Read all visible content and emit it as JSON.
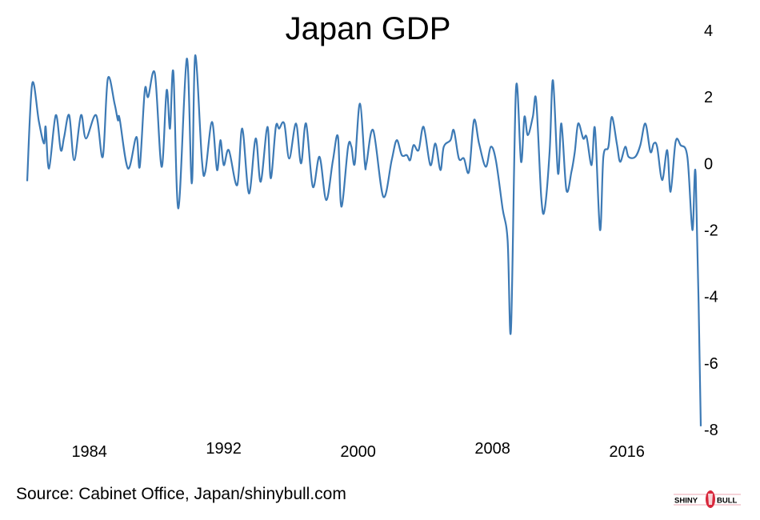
{
  "chart_data": {
    "type": "line",
    "title": "Japan GDP",
    "xlabel": "",
    "ylabel": "",
    "source": "Source: Cabinet Office, Japan/shinybull.com",
    "logo_text": "SHINY BULL",
    "x_ticks": [
      "1984",
      "1992",
      "2000",
      "2008",
      "2016"
    ],
    "y_ticks": [
      "4",
      "2",
      "0",
      "-2",
      "-4",
      "-6",
      "-8"
    ],
    "ylim": [
      -8,
      4
    ],
    "xlim": [
      1980.3,
      2020.4
    ],
    "grid": false,
    "line_color": "#3d7ab5",
    "series": [
      {
        "x": [
          1980.3,
          1980.6,
          1981.0,
          1981.3,
          1981.4,
          1981.6,
          1982.0,
          1982.3,
          1982.5,
          1982.8,
          1983.1,
          1983.5,
          1983.8,
          1984.4,
          1984.8,
          1985.1,
          1985.5,
          1985.7,
          1985.8,
          1986.3,
          1986.8,
          1987.0,
          1987.3,
          1987.5,
          1987.9,
          1988.3,
          1988.6,
          1988.8,
          1989.0,
          1989.3,
          1989.8,
          1990.1,
          1990.3,
          1990.7,
          1990.9,
          1991.3,
          1991.6,
          1991.8,
          1992.0,
          1992.3,
          1992.8,
          1993.1,
          1993.5,
          1993.9,
          1994.2,
          1994.6,
          1994.8,
          1995.1,
          1995.3,
          1995.6,
          1995.9,
          1996.3,
          1996.6,
          1996.9,
          1997.3,
          1997.7,
          1998.1,
          1998.5,
          1998.8,
          1999.0,
          1999.4,
          1999.6,
          1999.8,
          2000.1,
          2000.4,
          2000.5,
          2000.9,
          2001.5,
          2002.0,
          2002.3,
          2002.6,
          2002.9,
          2003.1,
          2003.3,
          2003.6,
          2003.9,
          2004.3,
          2004.6,
          2004.9,
          2005.1,
          2005.5,
          2005.7,
          2006.0,
          2006.3,
          2006.6,
          2006.9,
          2007.2,
          2007.6,
          2007.9,
          2008.2,
          2008.6,
          2008.9,
          2009.1,
          2009.4,
          2009.7,
          2009.9,
          2010.1,
          2010.4,
          2010.6,
          2010.9,
          2011.1,
          2011.4,
          2011.6,
          2011.9,
          2012.1,
          2012.4,
          2012.7,
          2012.9,
          2013.1,
          2013.4,
          2013.6,
          2013.9,
          2014.1,
          2014.4,
          2014.6,
          2014.9,
          2015.1,
          2015.4,
          2015.6,
          2015.9,
          2016.1,
          2016.5,
          2016.8,
          2017.1,
          2017.4,
          2017.6,
          2017.8,
          2018.1,
          2018.4,
          2018.6,
          2018.9,
          2019.2,
          2019.6,
          2019.9,
          2020.1,
          2020.4
        ],
        "y": [
          -0.53,
          2.4,
          1.25,
          0.6,
          1.1,
          -0.15,
          1.45,
          0.4,
          0.8,
          1.45,
          0.1,
          1.45,
          0.75,
          1.45,
          0.2,
          2.55,
          1.8,
          1.3,
          1.35,
          -0.15,
          0.8,
          -0.1,
          2.2,
          2.0,
          2.7,
          -0.1,
          2.2,
          1.05,
          2.75,
          -1.35,
          3.15,
          -0.6,
          3.25,
          0.1,
          -0.25,
          1.25,
          -0.2,
          0.7,
          -0.05,
          0.4,
          -0.65,
          1.05,
          -0.9,
          0.75,
          -0.55,
          1.1,
          -0.45,
          1.1,
          1.05,
          1.2,
          0.15,
          1.2,
          0.0,
          1.2,
          -0.7,
          0.2,
          -1.1,
          0.1,
          0.8,
          -1.3,
          0.5,
          0.5,
          0.0,
          1.8,
          0.0,
          0.0,
          1.0,
          -1.0,
          0.1,
          0.7,
          0.25,
          0.25,
          0.1,
          0.55,
          0.4,
          1.1,
          -0.05,
          0.6,
          -0.2,
          0.5,
          0.7,
          1.0,
          0.15,
          0.15,
          -0.25,
          1.3,
          0.6,
          -0.1,
          0.5,
          0.1,
          -1.35,
          -2.3,
          -5.0,
          2.25,
          0.05,
          1.4,
          0.85,
          1.4,
          1.9,
          -1.0,
          -1.4,
          0.35,
          2.5,
          -0.3,
          1.2,
          -0.8,
          -0.25,
          0.35,
          1.2,
          0.75,
          0.8,
          -0.05,
          1.05,
          -2.0,
          0.2,
          0.5,
          1.4,
          0.6,
          0.05,
          0.5,
          0.2,
          0.2,
          0.55,
          1.2,
          0.35,
          0.6,
          0.5,
          -0.5,
          0.4,
          -0.85,
          0.65,
          0.55,
          0.2,
          -2.0,
          -0.4,
          -7.9
        ]
      }
    ]
  }
}
